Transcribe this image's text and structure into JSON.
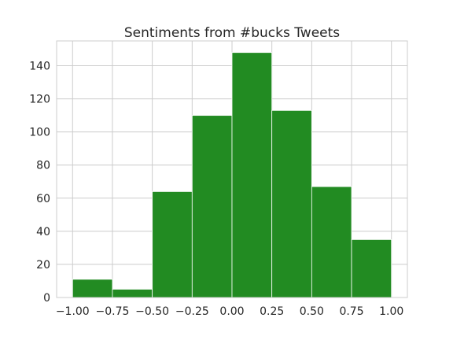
{
  "chart_data": {
    "type": "bar",
    "title": "Sentiments from #bucks Tweets",
    "xlabel": "",
    "ylabel": "",
    "bin_edges": [
      -1.0,
      -0.75,
      -0.5,
      -0.25,
      0.0,
      0.25,
      0.5,
      0.75,
      1.0
    ],
    "values": [
      11,
      5,
      64,
      110,
      148,
      113,
      67,
      35
    ],
    "xlim": [
      -1.1,
      1.1
    ],
    "ylim": [
      0,
      155
    ],
    "x_ticks": [
      -1.0,
      -0.75,
      -0.5,
      -0.25,
      0.0,
      0.25,
      0.5,
      0.75,
      1.0
    ],
    "x_tick_labels": [
      "−1.00",
      "−0.75",
      "−0.50",
      "−0.25",
      "0.00",
      "0.25",
      "0.50",
      "0.75",
      "1.00"
    ],
    "y_ticks": [
      0,
      20,
      40,
      60,
      80,
      100,
      120,
      140
    ],
    "y_tick_labels": [
      "0",
      "20",
      "40",
      "60",
      "80",
      "100",
      "120",
      "140"
    ],
    "grid": true,
    "bar_color": "#228b22",
    "bar_edge_color": "#ffffff",
    "grid_color": "#cccccc",
    "axes_edge_color": "#cccccc",
    "text_color": "#262626"
  }
}
